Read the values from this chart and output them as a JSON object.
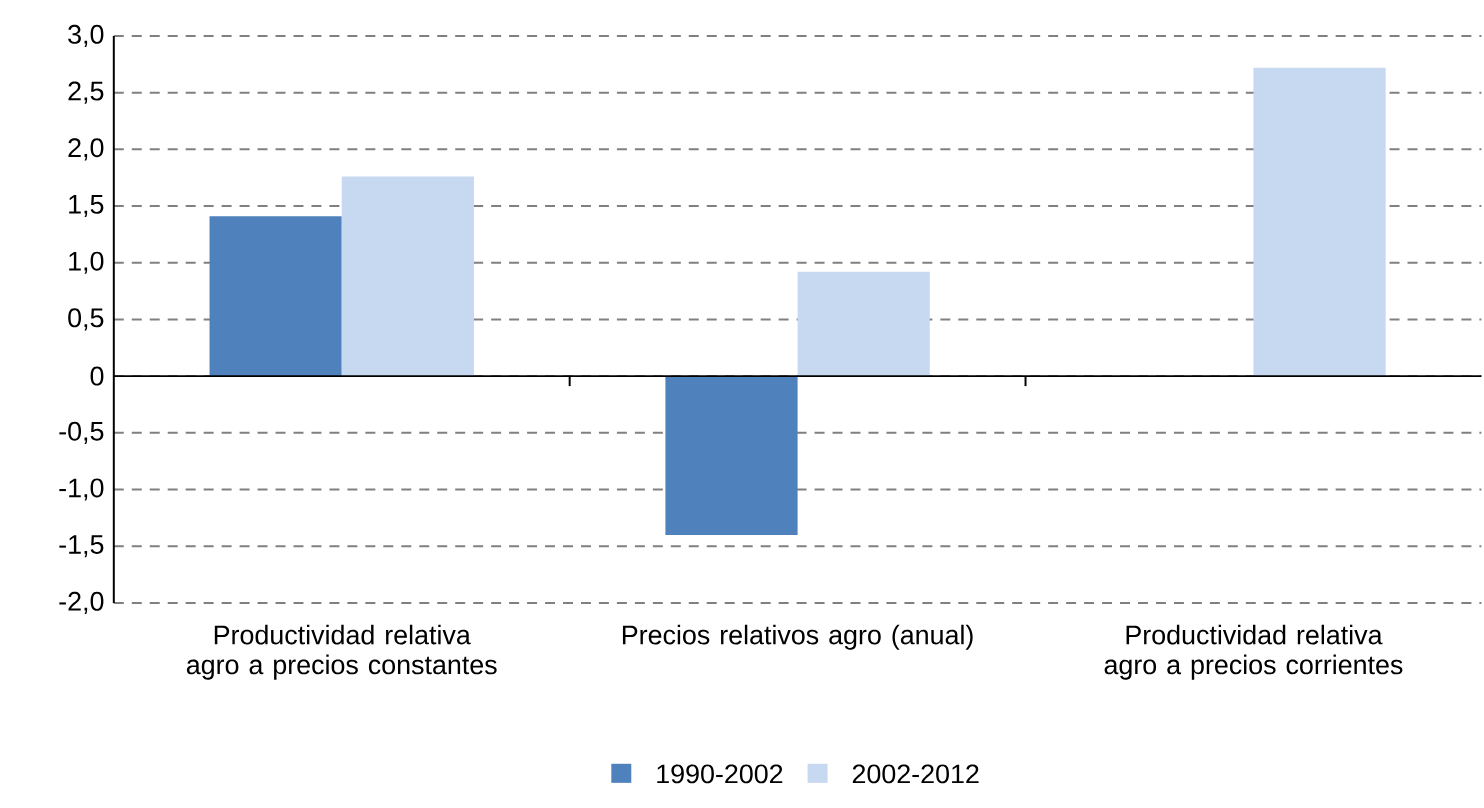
{
  "chart_data": {
    "type": "bar",
    "categories": [
      "Productividad relativa agro a precios constantes",
      "Precios relativos agro (anual)",
      "Productividad relativa agro a precios corrientes"
    ],
    "series": [
      {
        "name": "1990-2002",
        "color": "#4f81bd",
        "values": [
          1.41,
          -1.4,
          null
        ]
      },
      {
        "name": "2002-2012",
        "color": "#c6d9f0",
        "values": [
          1.76,
          0.92,
          2.72
        ]
      }
    ],
    "ylim": [
      -2.0,
      3.0
    ],
    "yticks": [
      {
        "value": -2.0,
        "label": "-2,0"
      },
      {
        "value": -1.5,
        "label": "-1,5"
      },
      {
        "value": -1.0,
        "label": "-1,0"
      },
      {
        "value": -0.5,
        "label": "-0,5"
      },
      {
        "value": 0,
        "label": "0"
      },
      {
        "value": 0.5,
        "label": "0,5"
      },
      {
        "value": 1.0,
        "label": "1,0"
      },
      {
        "value": 1.5,
        "label": "1,5"
      },
      {
        "value": 2.0,
        "label": "2,0"
      },
      {
        "value": 2.5,
        "label": "2,5"
      },
      {
        "value": 3.0,
        "label": "3,0"
      }
    ],
    "grid": "y",
    "legend": "bottom"
  }
}
